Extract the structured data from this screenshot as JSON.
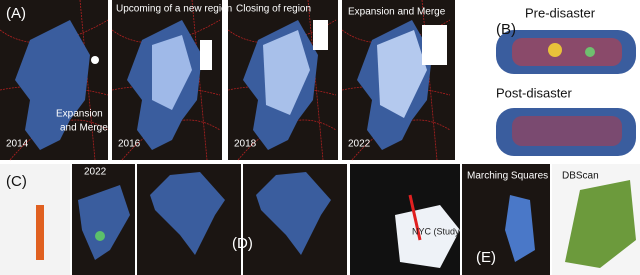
{
  "panels": {
    "a": {
      "label": "(A)",
      "annotations": [
        "Upcoming of a new region",
        "Closing of region",
        "Expansion and Merge"
      ],
      "lower_annotation": [
        "Expansion",
        "and Merge"
      ],
      "years": [
        "2014",
        "2016",
        "2018",
        "2022"
      ]
    },
    "b": {
      "label": "(B)",
      "pre": "Pre-disaster",
      "post": "Post-disaster"
    },
    "c": {
      "label": "(C)",
      "year": "2022"
    },
    "d": {
      "label": "(D)"
    },
    "nyc": {
      "label": "NYC (Study region)"
    },
    "e": {
      "label": "(E)",
      "left": "Marching Squares",
      "right": "DBScan"
    }
  }
}
